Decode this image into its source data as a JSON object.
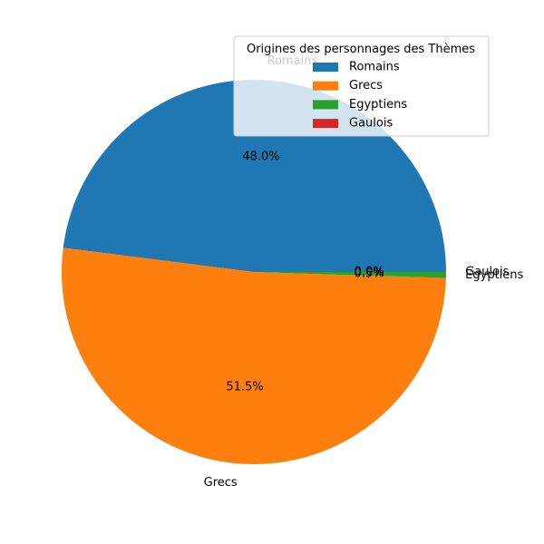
{
  "chart_data": {
    "type": "pie",
    "labels": [
      "Romains",
      "Grecs",
      "Egyptiens",
      "Gaulois"
    ],
    "values": [
      48.0,
      51.5,
      0.5,
      0.0
    ],
    "percent_labels": [
      "48.0%",
      "51.5%",
      "0.5%",
      "0.0%"
    ],
    "colors": [
      "#1f77b4",
      "#ff7f0e",
      "#2ca02c",
      "#d62728"
    ],
    "start_angle_deg": 0,
    "direction": "counterclockwise",
    "legend": {
      "title": "Origines des personnages des Thèmes",
      "position": "top-right"
    }
  }
}
